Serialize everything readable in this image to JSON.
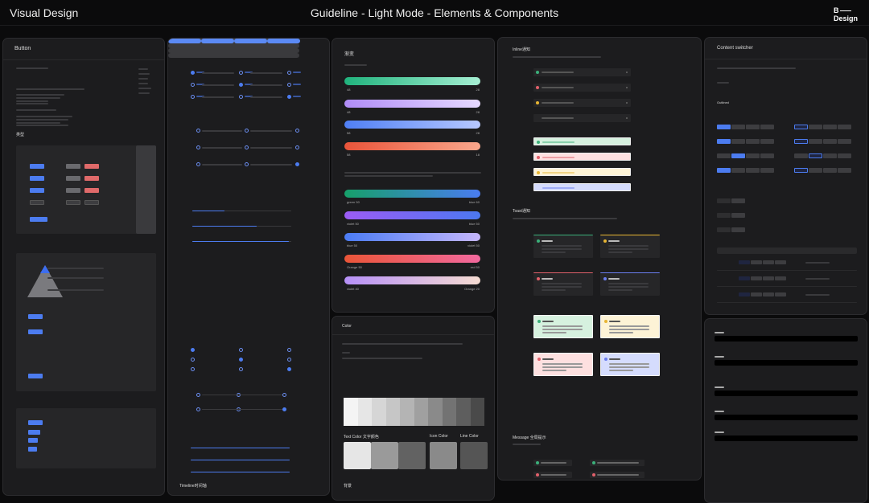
{
  "header": {
    "left_title": "Visual Design",
    "center_title": "Guideline - Light Mode - Elements & Components",
    "logo_text": "B Design"
  },
  "panels": {
    "button": {
      "title": "Button",
      "section": "类型"
    },
    "gradient": {
      "title": "渐变",
      "bars": [
        {
          "from": "#20b37d",
          "to": "#a6efd3",
          "left": "48",
          "right": "28"
        },
        {
          "from": "#b08cf7",
          "to": "#e6d9ff",
          "left": "48",
          "right": "28"
        },
        {
          "from": "#4f7ff5",
          "to": "#b7c8ff",
          "left": "58",
          "right": "28"
        },
        {
          "from": "#e9543a",
          "to": "#f9a78c",
          "left": "58",
          "right": "18"
        },
        {
          "from": "#16a06a",
          "to": "#4a7cf0",
          "left": "green 50",
          "right": "blue 60"
        },
        {
          "from": "#9c5cf5",
          "to": "#4b78f0",
          "left": "violet 50",
          "right": "blue 50"
        },
        {
          "from": "#4b7cf5",
          "to": "#c5b6fb",
          "left": "blue 50",
          "right": "violet 50"
        },
        {
          "from": "#ea5538",
          "to": "#f2699e",
          "left": "Orange 50",
          "right": "red 50"
        },
        {
          "from": "#b690f7",
          "to": "#f6dcd2",
          "left": "violet 40",
          "right": "Orange 20"
        }
      ]
    },
    "color": {
      "title": "Color",
      "text_color_label": "Text Color 文字颜色",
      "icon_color_label": "Icon Color",
      "line_color_label": "Line Color",
      "bottom_label": "背景"
    },
    "notify": {
      "inline_title": "Inline通知",
      "toast_title": "Toast通知",
      "message_title": "Message 全局提示",
      "status_colors": {
        "success": "#3bb07a",
        "error": "#e0606a",
        "warning": "#e8b533",
        "info": "#6b7ef0"
      },
      "toast_light_bg": {
        "success": "#d6f1df",
        "warning": "#fdf3d6",
        "error": "#fde0e0",
        "info": "#d5dcfd"
      }
    },
    "switcher": {
      "title": "Content switcher",
      "outlined_label": "Outlined"
    },
    "steps": {
      "bottom_label": "Timeline时间轴"
    }
  },
  "colors": {
    "accent": "#4c7cf0",
    "panel_bg": "#1c1c1e",
    "page_bg": "#0b0b0c"
  }
}
